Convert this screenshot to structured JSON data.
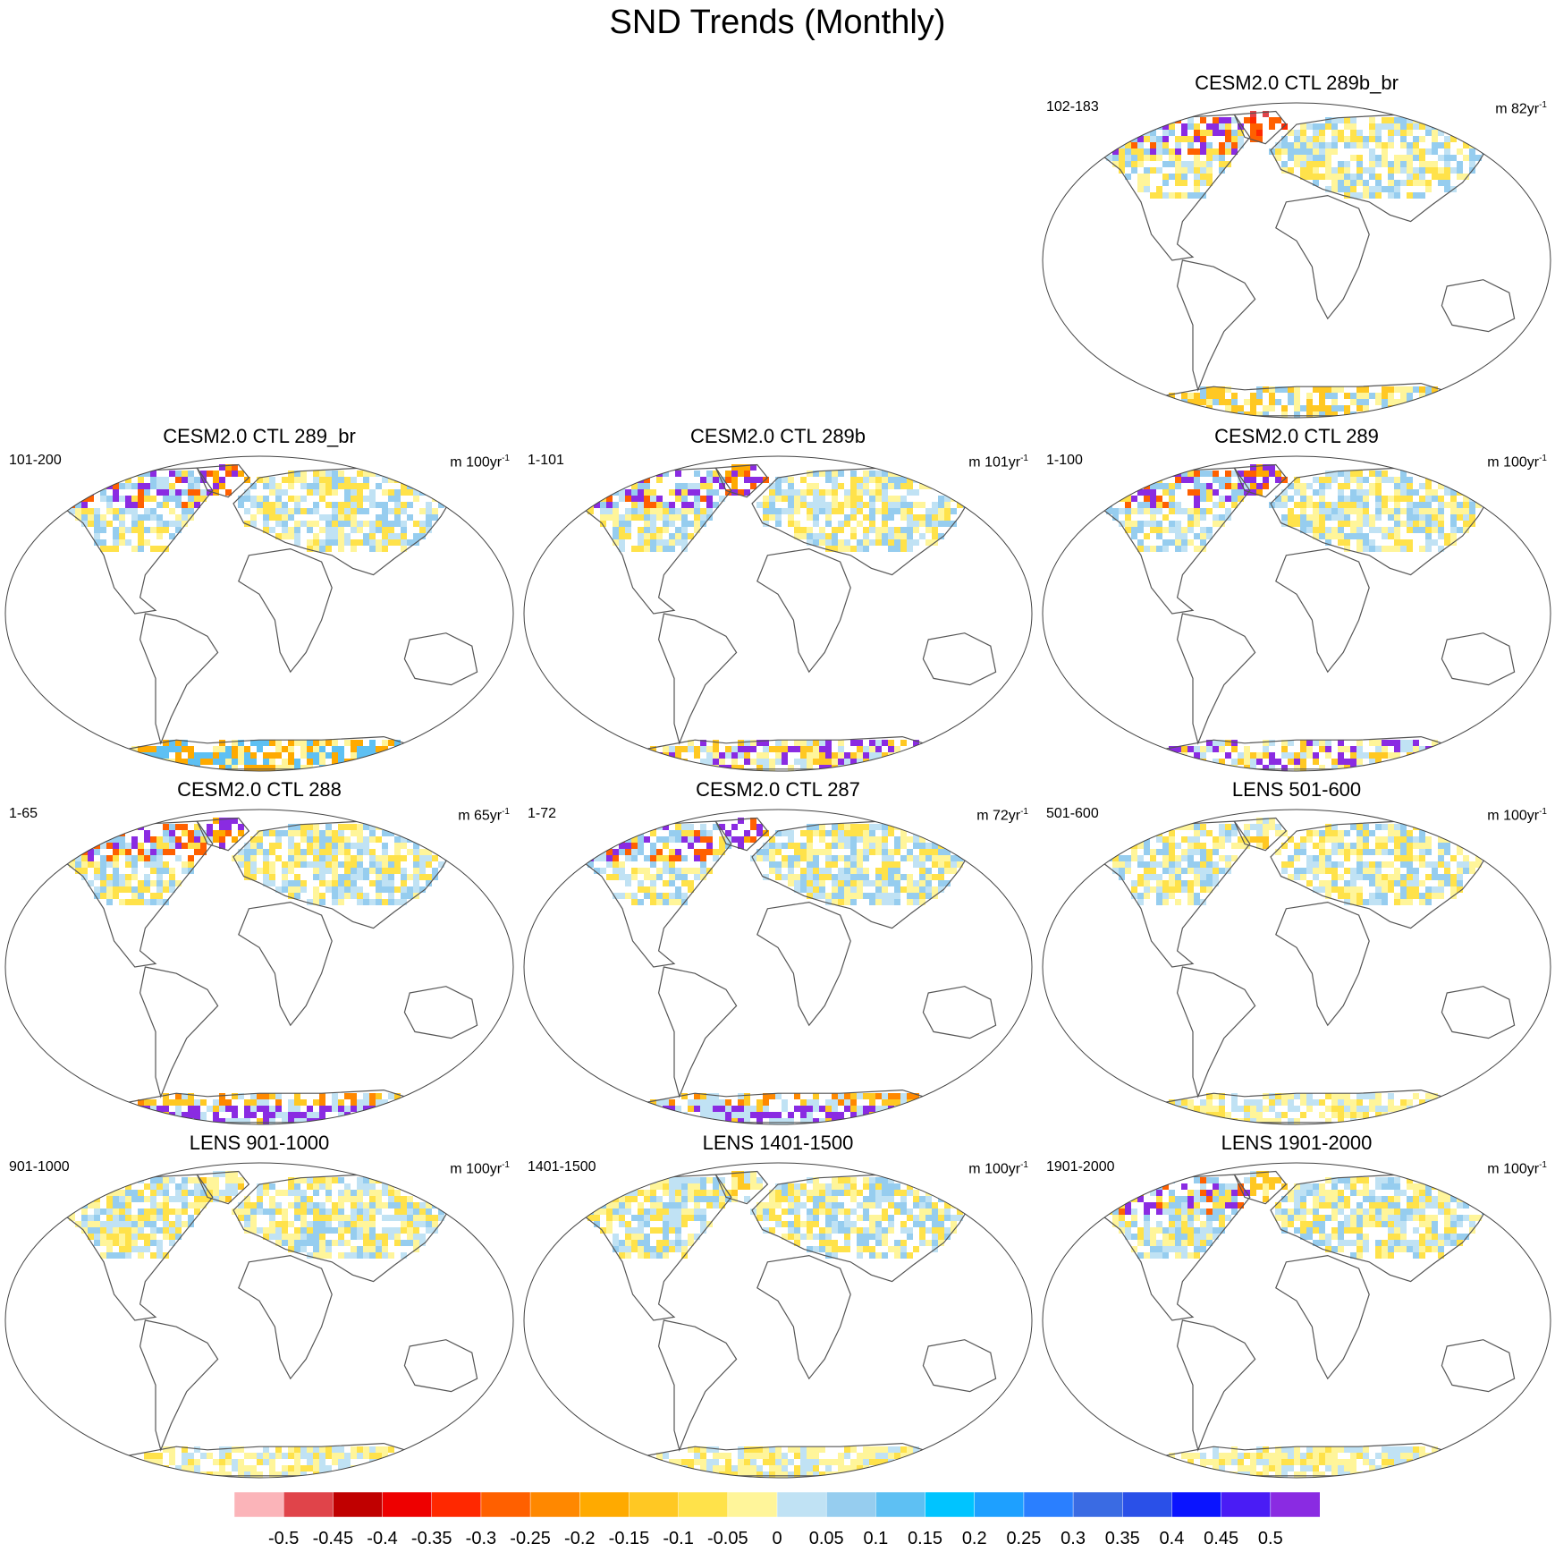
{
  "title": "SND Trends (Monthly)",
  "colors": {
    "map_outline": "#444444",
    "coast": "#555555"
  },
  "chart_data": {
    "type": "heatmap",
    "description_note": "",
    "colorbar": {
      "labels": [
        "-0.5",
        "-0.45",
        "-0.4",
        "-0.35",
        "-0.3",
        "-0.25",
        "-0.2",
        "-0.15",
        "-0.1",
        "-0.05",
        "0",
        "0.05",
        "0.1",
        "0.15",
        "0.2",
        "0.25",
        "0.3",
        "0.35",
        "0.4",
        "0.45",
        "0.5"
      ],
      "colors": [
        "#fbb4b9",
        "#e0444a",
        "#c00000",
        "#ee0000",
        "#ff2800",
        "#ff6000",
        "#ff8800",
        "#ffaa00",
        "#ffc823",
        "#ffe24a",
        "#fff59a",
        "#c0e2f4",
        "#96cdef",
        "#5ec0f3",
        "#00c4ff",
        "#1ea0ff",
        "#2a7fff",
        "#3a6be3",
        "#2a50e8",
        "#0a14ff",
        "#4a1cf5",
        "#8a2be2"
      ]
    },
    "panels": [
      {
        "title": "CESM2.0 CTL 289b_br",
        "left": "102-183",
        "right_unit": "m 82yr",
        "right_exp": "-1",
        "pattern": "strongA"
      },
      {
        "title": "CESM2.0 CTL 289_br",
        "left": "101-200",
        "right_unit": "m 100yr",
        "right_exp": "-1",
        "pattern": "mixedA"
      },
      {
        "title": "CESM2.0 CTL 289b",
        "left": "1-101",
        "right_unit": "m 101yr",
        "right_exp": "-1",
        "pattern": "purpleB"
      },
      {
        "title": "CESM2.0 CTL 289",
        "left": "1-100",
        "right_unit": "m 100yr",
        "right_exp": "-1",
        "pattern": "purpleC"
      },
      {
        "title": "CESM2.0 CTL 288",
        "left": "1-65",
        "right_unit": "m 65yr",
        "right_exp": "-1",
        "pattern": "purpleD"
      },
      {
        "title": "CESM2.0 CTL 287",
        "left": "1-72",
        "right_unit": "m 72yr",
        "right_exp": "-1",
        "pattern": "purpleD"
      },
      {
        "title": "LENS 501-600",
        "left": "501-600",
        "right_unit": "m 100yr",
        "right_exp": "-1",
        "pattern": "lens"
      },
      {
        "title": "LENS 901-1000",
        "left": "901-1000",
        "right_unit": "m 100yr",
        "right_exp": "-1",
        "pattern": "lens"
      },
      {
        "title": "LENS 1401-1500",
        "left": "1401-1500",
        "right_unit": "m 100yr",
        "right_exp": "-1",
        "pattern": "lens"
      },
      {
        "title": "LENS 1901-2000",
        "left": "1901-2000",
        "right_unit": "m 100yr",
        "right_exp": "-1",
        "pattern": "lensB"
      }
    ]
  }
}
